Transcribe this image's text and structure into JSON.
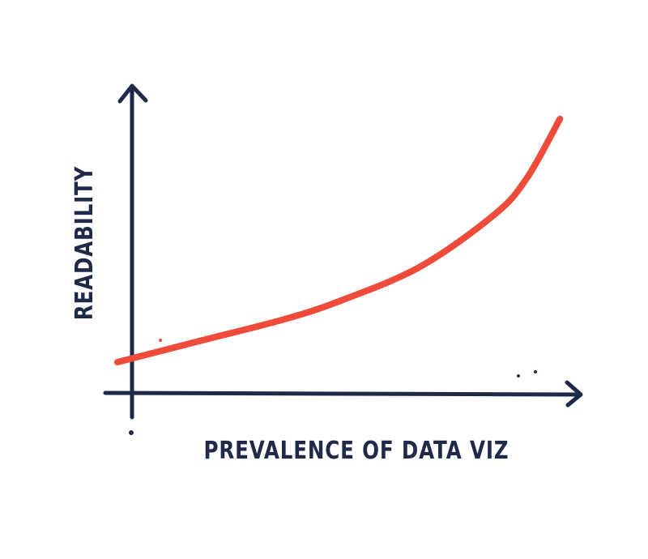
{
  "chart_data": {
    "type": "line",
    "x_label": "PREVALENCE OF DATA VIZ",
    "y_label": "READABILITY",
    "x": [
      0,
      18,
      36,
      48,
      65,
      81,
      88,
      95
    ],
    "series": [
      {
        "color": "#ee4b3a",
        "values": [
          10,
          17,
          24,
          30,
          41,
          58,
          70,
          89
        ]
      }
    ],
    "xlim": [
      0,
      100
    ],
    "ylim": [
      0,
      100
    ],
    "grid": false
  }
}
